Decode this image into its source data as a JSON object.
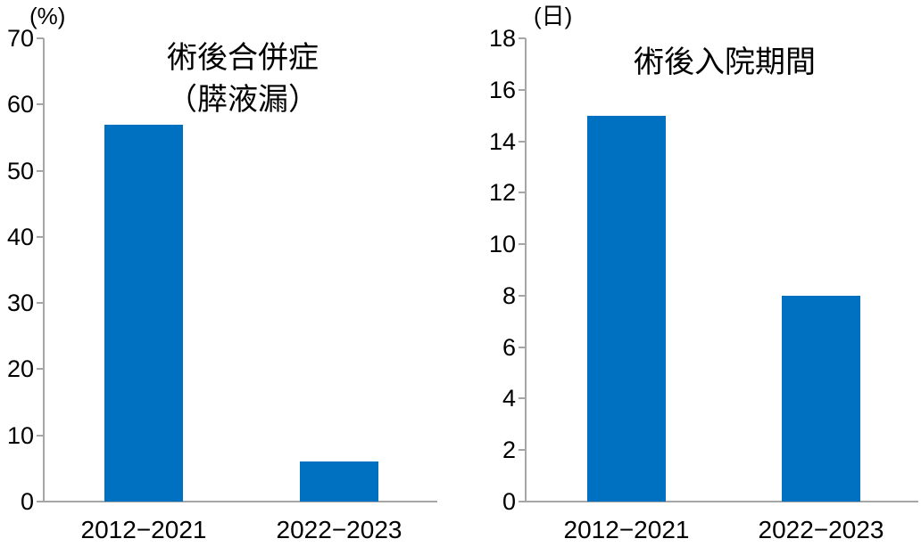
{
  "chart_data": [
    {
      "type": "bar",
      "title": "術後合併症（膵液漏）",
      "title_lines": [
        "術後合併症",
        "（膵液漏）"
      ],
      "unit_label": "(%)",
      "categories": [
        "2012−2021",
        "2022−2023"
      ],
      "values": [
        57,
        6
      ],
      "xlabel": "",
      "ylabel": "(%)",
      "ylim": [
        0,
        70
      ],
      "ytick_step": 10,
      "ytick_labels": [
        "0",
        "10",
        "20",
        "30",
        "40",
        "50",
        "60",
        "70"
      ],
      "grid": false,
      "legend_position": "none",
      "bar_color": "#0070C0",
      "axis_color": "#A6A6A6",
      "text_color": "#000000"
    },
    {
      "type": "bar",
      "title": "術後入院期間",
      "title_lines": [
        "術後入院期間"
      ],
      "unit_label": "(日)",
      "categories": [
        "2012−2021",
        "2022−2023"
      ],
      "values": [
        15,
        8
      ],
      "xlabel": "",
      "ylabel": "(日)",
      "ylim": [
        0,
        18
      ],
      "ytick_step": 2,
      "ytick_labels": [
        "0",
        "2",
        "4",
        "6",
        "8",
        "10",
        "12",
        "14",
        "16",
        "18"
      ],
      "grid": false,
      "legend_position": "none",
      "bar_color": "#0070C0",
      "axis_color": "#A6A6A6",
      "text_color": "#000000"
    }
  ]
}
